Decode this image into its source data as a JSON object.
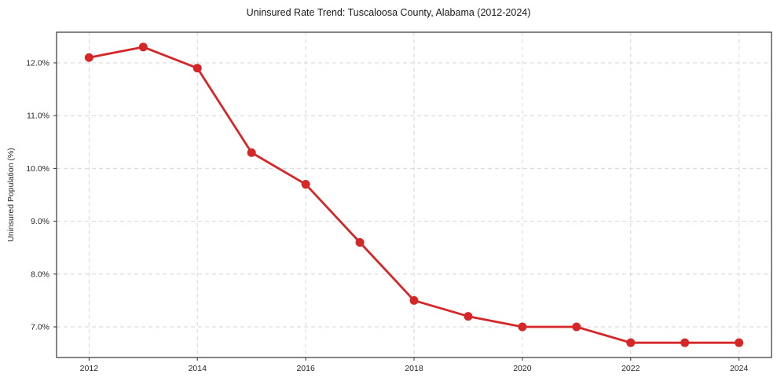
{
  "chart_data": {
    "type": "line",
    "title": "Uninsured Rate Trend: Tuscaloosa County, Alabama (2012-2024)",
    "xlabel": "",
    "ylabel": "Uninsured Population (%)",
    "x": [
      2012,
      2013,
      2014,
      2015,
      2016,
      2017,
      2018,
      2019,
      2020,
      2021,
      2022,
      2023,
      2024
    ],
    "values": [
      12.1,
      12.3,
      11.9,
      10.3,
      9.7,
      8.6,
      7.5,
      7.2,
      7.0,
      7.0,
      6.7,
      6.7,
      6.7
    ],
    "xlim": [
      2011.4,
      2024.6
    ],
    "ylim": [
      6.42,
      12.58
    ],
    "x_ticks": {
      "values": [
        2012,
        2014,
        2016,
        2018,
        2020,
        2022,
        2024
      ],
      "labels": [
        "2012",
        "2014",
        "2016",
        "2018",
        "2020",
        "2022",
        "2024"
      ]
    },
    "y_ticks": {
      "values": [
        7.0,
        8.0,
        9.0,
        10.0,
        11.0,
        12.0
      ],
      "labels": [
        "7.0%",
        "8.0%",
        "9.0%",
        "10.0%",
        "11.0%",
        "12.0%"
      ]
    },
    "line_color": "#d62728",
    "marker": "circle",
    "marker_color": "#d62728",
    "grid": true,
    "grid_color": "#d6d6d6",
    "grid_style": "dashed",
    "axis_color": "#333333",
    "background_color": "#ffffff",
    "legend": "none"
  }
}
